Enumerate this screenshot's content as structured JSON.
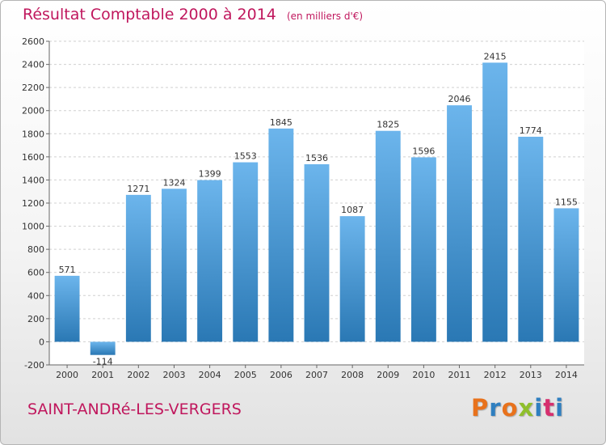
{
  "header": {
    "title": "Résultat Comptable 2000 à 2014",
    "subtitle": "(en milliers d'€)"
  },
  "footer": {
    "commune": "SAINT-ANDRé-LES-VERGERS",
    "brand": "Proxiti"
  },
  "colors": {
    "accent": "#c0175d",
    "bar_top": "#6cb5ec",
    "bar_bottom": "#2a78b4",
    "logo_letters": [
      "#e8721c",
      "#2f7fc0",
      "#e8721c",
      "#8fbf2c",
      "#2f7fc0",
      "#d62f6e",
      "#2f7fc0"
    ]
  },
  "chart_data": {
    "type": "bar",
    "title": "Résultat Comptable 2000 à 2014",
    "subtitle": "(en milliers d'€)",
    "xlabel": "",
    "ylabel": "",
    "categories": [
      "2000",
      "2001",
      "2002",
      "2003",
      "2004",
      "2005",
      "2006",
      "2007",
      "2008",
      "2009",
      "2010",
      "2011",
      "2012",
      "2013",
      "2014"
    ],
    "values": [
      571,
      -114,
      1271,
      1324,
      1399,
      1553,
      1845,
      1536,
      1087,
      1825,
      1596,
      2046,
      2415,
      1774,
      1155
    ],
    "value_labels": [
      "571",
      "-114",
      "1271",
      "1324",
      "1399",
      "1553",
      "1845",
      "1536",
      "1087",
      "1825",
      "1596",
      "2046",
      "2415",
      "1774",
      "1155"
    ],
    "ylim": [
      -200,
      2600
    ],
    "yticks": [
      "-200",
      "0",
      "200",
      "400",
      "600",
      "800",
      "1000",
      "1200",
      "1400",
      "1600",
      "1800",
      "2000",
      "2200",
      "2400",
      "2600"
    ],
    "grid": true,
    "legend": "none"
  }
}
